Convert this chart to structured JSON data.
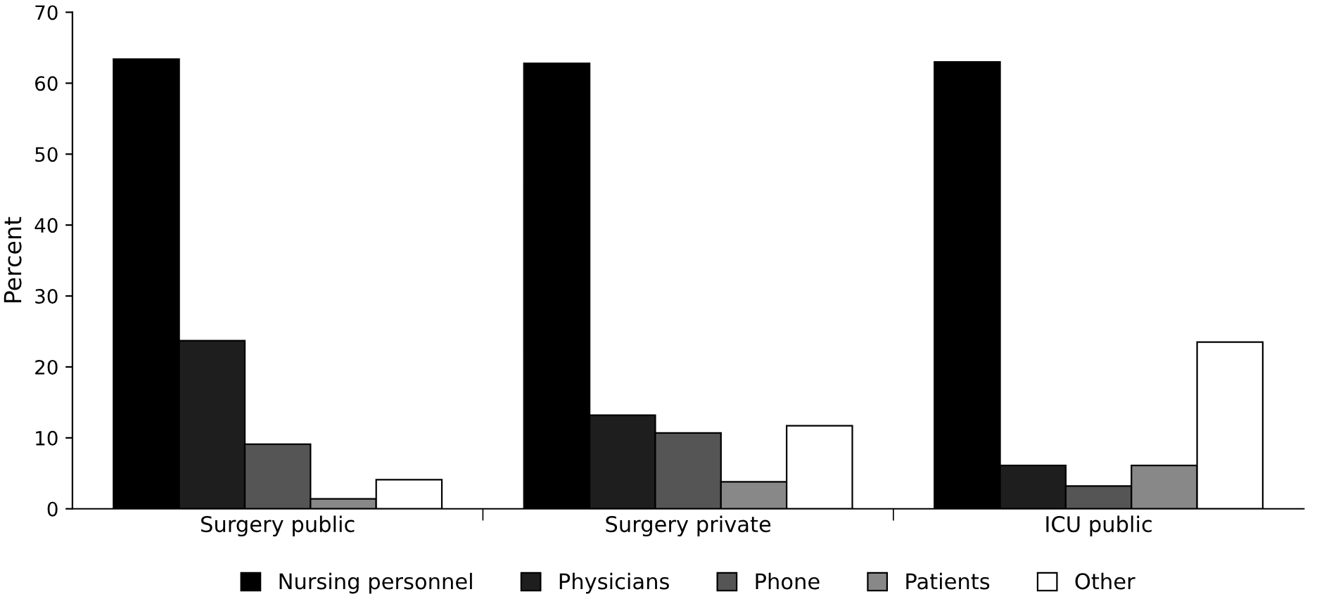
{
  "chart_data": {
    "type": "bar",
    "ylabel": "Percent",
    "categories": [
      "Surgery public",
      "Surgery private",
      "ICU public"
    ],
    "series": [
      {
        "name": "Nursing personnel",
        "color": "#000000",
        "values": [
          63.4,
          62.8,
          63
        ]
      },
      {
        "name": "Physicians",
        "color": "#1e1e1e",
        "values": [
          23.7,
          13.2,
          6.1
        ]
      },
      {
        "name": "Phone",
        "color": "#555555",
        "values": [
          9.1,
          10.7,
          3.2
        ]
      },
      {
        "name": "Patients",
        "color": "#888888",
        "values": [
          1.4,
          3.8,
          6.1
        ]
      },
      {
        "name": "Other",
        "color": "#ffffff",
        "values": [
          4.1,
          11.7,
          23.5
        ]
      }
    ],
    "ylim": [
      0,
      70
    ],
    "yticks": [
      0,
      10,
      20,
      30,
      40,
      50,
      60,
      70
    ],
    "grid": false,
    "legend": "bottom"
  }
}
